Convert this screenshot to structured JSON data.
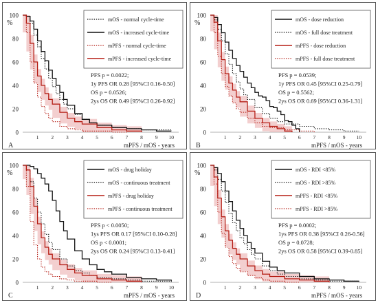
{
  "figure": {
    "colors": {
      "black": "#111111",
      "red": "#b51d14",
      "band": "#e9a8a8",
      "axis": "#999999"
    }
  },
  "chart_data": [
    {
      "type": "line",
      "panel_label": "A",
      "ylabel": "%",
      "xlabel": "mPFS / mOS - years",
      "xlim": [
        0,
        10.5
      ],
      "ylim": [
        0,
        100
      ],
      "xticks": [
        1,
        2,
        3,
        4,
        5,
        6,
        7,
        8,
        9,
        10
      ],
      "yticks": [
        0,
        20,
        40,
        60,
        80,
        100
      ],
      "grid": false,
      "legend_position": "top-right",
      "stats": [
        "PFS p = 0.0022;",
        "1y PFS OR 0.28 [95%CI 0.16-0.50]",
        "OS p = 0.0526;",
        "2ys OS OR 0.49 [95%CI 0.26-0.92]"
      ],
      "series": [
        {
          "name": "mOS - normal cycle-time",
          "color": "black",
          "style": "dotted",
          "band": false,
          "x": [
            0,
            0.25,
            0.5,
            0.75,
            1,
            1.25,
            1.5,
            1.75,
            2,
            2.25,
            2.5,
            2.75,
            3,
            3.5,
            4,
            4.5,
            5,
            6,
            7,
            8,
            9,
            10
          ],
          "values": [
            100,
            99,
            93,
            83,
            73,
            63,
            54,
            46,
            39,
            33,
            28,
            24,
            20,
            15,
            11,
            8,
            6,
            4,
            3,
            2,
            2,
            1
          ]
        },
        {
          "name": "mOS - increased cycle-time",
          "color": "black",
          "style": "solid",
          "band": false,
          "x": [
            0,
            0.25,
            0.5,
            0.75,
            1,
            1.25,
            1.5,
            1.75,
            2,
            2.25,
            2.5,
            2.75,
            3,
            3.5,
            4,
            4.5,
            5,
            6,
            7,
            8,
            9,
            10
          ],
          "values": [
            100,
            99,
            95,
            88,
            78,
            69,
            61,
            53,
            46,
            40,
            34,
            28,
            23,
            16,
            11,
            8,
            6,
            4,
            3,
            2,
            1,
            1
          ]
        },
        {
          "name": "mPFS - normal cycle-time",
          "color": "red",
          "style": "dotted",
          "band": false,
          "x": [
            0,
            0.25,
            0.5,
            0.75,
            1,
            1.25,
            1.5,
            1.75,
            2,
            2.5,
            3,
            3.5,
            4,
            5,
            6,
            7
          ],
          "values": [
            100,
            85,
            60,
            42,
            30,
            22,
            16,
            12,
            9,
            5,
            3,
            2,
            1,
            1,
            0,
            0
          ]
        },
        {
          "name": "mPFS - increased cycle-time",
          "color": "red",
          "style": "solid",
          "band": true,
          "x": [
            0,
            0.25,
            0.5,
            0.75,
            1,
            1.25,
            1.5,
            1.75,
            2,
            2.5,
            3,
            3.5,
            4,
            5,
            6,
            7,
            8
          ],
          "values": [
            100,
            93,
            76,
            60,
            48,
            40,
            33,
            28,
            24,
            17,
            12,
            9,
            7,
            4,
            2,
            1,
            0
          ]
        }
      ]
    },
    {
      "type": "line",
      "panel_label": "B",
      "ylabel": "%",
      "xlabel": "mPFS / mOS - years",
      "xlim": [
        0,
        10.5
      ],
      "ylim": [
        0,
        100
      ],
      "xticks": [
        1,
        2,
        3,
        4,
        5,
        6,
        7,
        8,
        9,
        10
      ],
      "yticks": [
        0,
        20,
        40,
        60,
        80,
        100
      ],
      "grid": false,
      "legend_position": "top-right",
      "stats": [
        "PFS p = 0.0539;",
        "1y PFS OR 0.45 [95%CI 0.25-0.79]",
        "OS p = 0.5562;",
        "2ys OS OR 0.69 [95%CI 0.36-1.31]"
      ],
      "series": [
        {
          "name": "mOS - dose reduction",
          "color": "black",
          "style": "solid",
          "band": false,
          "x": [
            0,
            0.25,
            0.5,
            0.75,
            1,
            1.25,
            1.5,
            1.75,
            2,
            2.25,
            2.5,
            2.75,
            3,
            3.25,
            3.5,
            3.75,
            4,
            4.25,
            4.5,
            4.75,
            5,
            5.25,
            5.5,
            5.75,
            6
          ],
          "values": [
            100,
            98,
            92,
            85,
            77,
            70,
            63,
            57,
            52,
            47,
            42,
            38,
            34,
            31,
            30,
            27,
            22,
            21,
            18,
            15,
            10,
            9,
            6,
            3,
            0
          ]
        },
        {
          "name": "mOS - full dose treatment",
          "color": "black",
          "style": "dotted",
          "band": false,
          "x": [
            0,
            0.25,
            0.5,
            0.75,
            1,
            1.25,
            1.5,
            1.75,
            2,
            2.25,
            2.5,
            3,
            3.5,
            4,
            4.5,
            5,
            6,
            7,
            8,
            9,
            10
          ],
          "values": [
            100,
            96,
            88,
            78,
            67,
            58,
            50,
            43,
            37,
            32,
            28,
            21,
            16,
            12,
            9,
            7,
            5,
            3,
            2,
            1,
            1
          ]
        },
        {
          "name": "mPFS - dose reduction",
          "color": "red",
          "style": "solid",
          "band": true,
          "x": [
            0,
            0.25,
            0.5,
            0.75,
            1,
            1.25,
            1.5,
            1.75,
            2,
            2.5,
            3,
            3.5,
            4,
            4.5,
            5,
            5.5
          ],
          "values": [
            100,
            94,
            78,
            62,
            50,
            42,
            36,
            30,
            26,
            18,
            12,
            8,
            5,
            3,
            1,
            0
          ]
        },
        {
          "name": "mPFS - full dose treatment",
          "color": "red",
          "style": "dotted",
          "band": false,
          "x": [
            0,
            0.25,
            0.5,
            0.75,
            1,
            1.25,
            1.5,
            1.75,
            2,
            2.5,
            3,
            3.5,
            4,
            5,
            6,
            7
          ],
          "values": [
            100,
            85,
            65,
            50,
            39,
            31,
            25,
            20,
            17,
            12,
            8,
            5,
            4,
            2,
            1,
            0
          ]
        }
      ]
    },
    {
      "type": "line",
      "panel_label": "C",
      "ylabel": "%",
      "xlabel": "mPFS / mOS - years",
      "xlim": [
        0,
        10.5
      ],
      "ylim": [
        0,
        100
      ],
      "xticks": [
        1,
        2,
        3,
        4,
        5,
        6,
        7,
        8,
        9,
        10
      ],
      "yticks": [
        0,
        20,
        40,
        60,
        80,
        100
      ],
      "grid": false,
      "legend_position": "top-right",
      "stats": [
        "PFS p < 0.0050;",
        "1ys PFS OR 0.17 [95%CI 0.10-0.28]",
        "OS p < 0.0001;",
        "2ys OS OR 0.24 [95%CI 0.13-0.41]"
      ],
      "series": [
        {
          "name": "mOS - drug holiday",
          "color": "black",
          "style": "solid",
          "band": false,
          "x": [
            0,
            0.25,
            0.5,
            0.75,
            1,
            1.25,
            1.5,
            1.75,
            2,
            2.25,
            2.5,
            2.75,
            3,
            3.5,
            4,
            4.5,
            5,
            5.5,
            6,
            7,
            8,
            9,
            10
          ],
          "values": [
            100,
            100,
            99,
            97,
            93,
            89,
            84,
            78,
            70,
            61,
            52,
            44,
            37,
            27,
            20,
            15,
            11,
            9,
            7,
            4,
            3,
            2,
            1
          ]
        },
        {
          "name": "mOS - continuous treatment",
          "color": "black",
          "style": "dotted",
          "band": false,
          "x": [
            0,
            0.25,
            0.5,
            0.75,
            1,
            1.25,
            1.5,
            1.75,
            2,
            2.5,
            3,
            3.5,
            4,
            4.5,
            5,
            6,
            7,
            8,
            9,
            10
          ],
          "values": [
            100,
            96,
            86,
            72,
            60,
            50,
            41,
            34,
            28,
            20,
            14,
            10,
            8,
            6,
            4,
            3,
            2,
            1,
            1,
            0
          ]
        },
        {
          "name": "mPFS - drug holiday",
          "color": "red",
          "style": "solid",
          "band": true,
          "x": [
            0,
            0.25,
            0.5,
            0.75,
            1,
            1.25,
            1.5,
            1.75,
            2,
            2.5,
            3,
            3.5,
            4,
            5,
            6,
            7,
            8
          ],
          "values": [
            100,
            96,
            82,
            65,
            50,
            38,
            30,
            24,
            20,
            15,
            11,
            8,
            6,
            3,
            2,
            1,
            0
          ]
        },
        {
          "name": "mPFS - continuous treatment",
          "color": "red",
          "style": "dotted",
          "band": false,
          "x": [
            0,
            0.25,
            0.5,
            0.75,
            1,
            1.25,
            1.5,
            1.75,
            2,
            2.5,
            3,
            3.5,
            4,
            5,
            6
          ],
          "values": [
            100,
            82,
            52,
            32,
            20,
            13,
            9,
            7,
            5,
            3,
            2,
            1,
            1,
            0,
            0
          ]
        }
      ]
    },
    {
      "type": "line",
      "panel_label": "D",
      "ylabel": "%",
      "xlabel": "mPFS / mOS - years",
      "xlim": [
        0,
        10.5
      ],
      "ylim": [
        0,
        100
      ],
      "xticks": [
        1,
        2,
        3,
        4,
        5,
        6,
        7,
        8,
        9,
        10
      ],
      "yticks": [
        0,
        20,
        40,
        60,
        80,
        100
      ],
      "grid": false,
      "legend_position": "top-right",
      "stats": [
        "PFS p = 0.0002;",
        "1ys PFS OR 0.38 [95%CI 0.26-0.56]",
        "OS p = 0.0728;",
        "2ys OS OR 0.58 [95%CI 0.39-0.85]"
      ],
      "series": [
        {
          "name": "mOS - RDI <85%",
          "color": "black",
          "style": "solid",
          "band": false,
          "x": [
            0,
            0.25,
            0.5,
            0.75,
            1,
            1.25,
            1.5,
            1.75,
            2,
            2.25,
            2.5,
            2.75,
            3,
            3.5,
            4,
            4.5,
            5,
            6,
            7,
            8,
            9,
            10
          ],
          "values": [
            100,
            98,
            93,
            86,
            78,
            69,
            61,
            53,
            46,
            40,
            34,
            29,
            25,
            18,
            13,
            10,
            8,
            5,
            3,
            2,
            1,
            1
          ]
        },
        {
          "name": "mOS - RDI >85%",
          "color": "black",
          "style": "dotted",
          "band": false,
          "x": [
            0,
            0.25,
            0.5,
            0.75,
            1,
            1.25,
            1.5,
            1.75,
            2,
            2.25,
            2.5,
            2.75,
            3,
            3.5,
            4,
            4.5,
            5,
            6,
            7,
            8,
            9,
            10
          ],
          "values": [
            100,
            96,
            88,
            78,
            68,
            59,
            51,
            44,
            38,
            33,
            28,
            24,
            20,
            14,
            10,
            7,
            5,
            3,
            2,
            1,
            1,
            0
          ]
        },
        {
          "name": "mPFS - RDI <85%",
          "color": "red",
          "style": "solid",
          "band": true,
          "x": [
            0,
            0.25,
            0.5,
            0.75,
            1,
            1.25,
            1.5,
            1.75,
            2,
            2.5,
            3,
            3.5,
            4,
            5,
            6,
            7,
            8
          ],
          "values": [
            100,
            90,
            72,
            56,
            44,
            36,
            29,
            24,
            20,
            14,
            10,
            7,
            5,
            3,
            2,
            1,
            0
          ]
        },
        {
          "name": "mPFS - RDI >85%",
          "color": "red",
          "style": "dotted",
          "band": false,
          "x": [
            0,
            0.25,
            0.5,
            0.75,
            1,
            1.25,
            1.5,
            1.75,
            2,
            2.5,
            3,
            3.5,
            4,
            5,
            6
          ],
          "values": [
            100,
            84,
            60,
            42,
            30,
            22,
            16,
            12,
            9,
            6,
            4,
            2,
            1,
            0,
            0
          ]
        }
      ]
    }
  ]
}
